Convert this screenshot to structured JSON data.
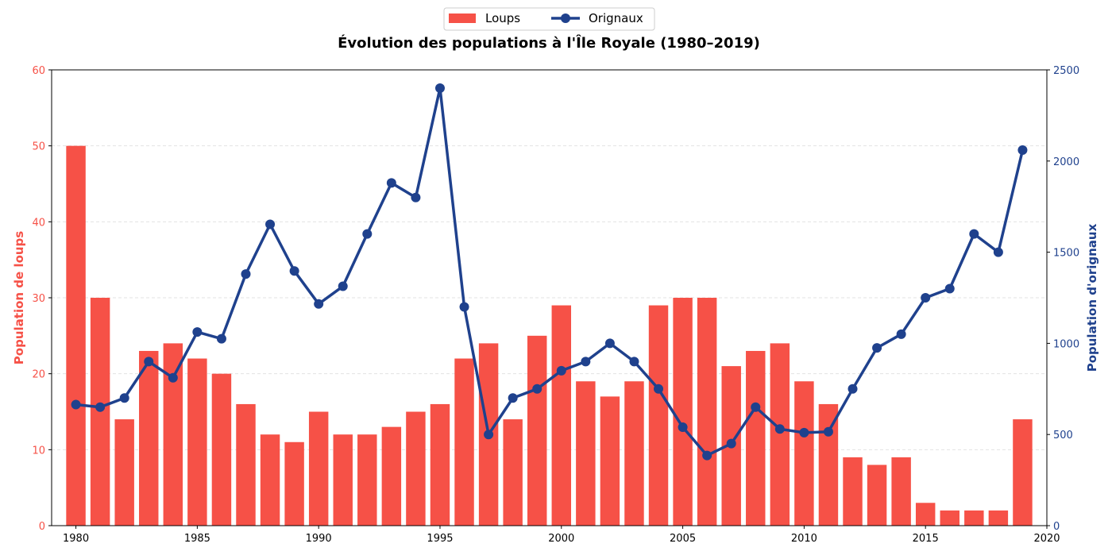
{
  "chart_data": {
    "type": "bar+line",
    "title": "Évolution des populations à l'Île Royale (1980–2019)",
    "xlabel": "",
    "ylabel_left": "Population de loups",
    "ylabel_right": "Population d'orignaux",
    "xlim": [
      1979,
      2020
    ],
    "ylim_left": [
      0,
      60
    ],
    "ylim_right": [
      0,
      2500
    ],
    "x_ticks": [
      1980,
      1985,
      1990,
      1995,
      2000,
      2005,
      2010,
      2015,
      2020
    ],
    "y_ticks_left": [
      0,
      10,
      20,
      30,
      40,
      50,
      60
    ],
    "y_ticks_right": [
      0,
      500,
      1000,
      1500,
      2000,
      2500
    ],
    "grid": "horizontal dashed",
    "legend_position": "top-center",
    "x": [
      1980,
      1981,
      1982,
      1983,
      1984,
      1985,
      1986,
      1987,
      1988,
      1989,
      1990,
      1991,
      1992,
      1993,
      1994,
      1995,
      1996,
      1997,
      1998,
      1999,
      2000,
      2001,
      2002,
      2003,
      2004,
      2005,
      2006,
      2007,
      2008,
      2009,
      2010,
      2011,
      2012,
      2013,
      2014,
      2015,
      2016,
      2017,
      2018,
      2019
    ],
    "series": [
      {
        "name": "Loups",
        "type": "bar",
        "axis": "left",
        "color": "#f65147",
        "values": [
          50,
          30,
          14,
          23,
          24,
          22,
          20,
          16,
          12,
          11,
          15,
          12,
          12,
          13,
          15,
          16,
          22,
          24,
          14,
          25,
          29,
          19,
          17,
          19,
          29,
          30,
          30,
          21,
          23,
          24,
          19,
          16,
          9,
          8,
          9,
          3,
          2,
          2,
          2,
          14
        ]
      },
      {
        "name": "Orignaux",
        "type": "line",
        "axis": "right",
        "color": "#1f418d",
        "values": [
          664,
          650,
          700,
          900,
          811,
          1062,
          1025,
          1380,
          1653,
          1397,
          1216,
          1313,
          1600,
          1880,
          1800,
          2400,
          1200,
          500,
          700,
          750,
          850,
          900,
          1000,
          900,
          750,
          540,
          385,
          450,
          650,
          530,
          510,
          515,
          750,
          975,
          1050,
          1250,
          1300,
          1600,
          1500,
          2060
        ]
      }
    ]
  }
}
